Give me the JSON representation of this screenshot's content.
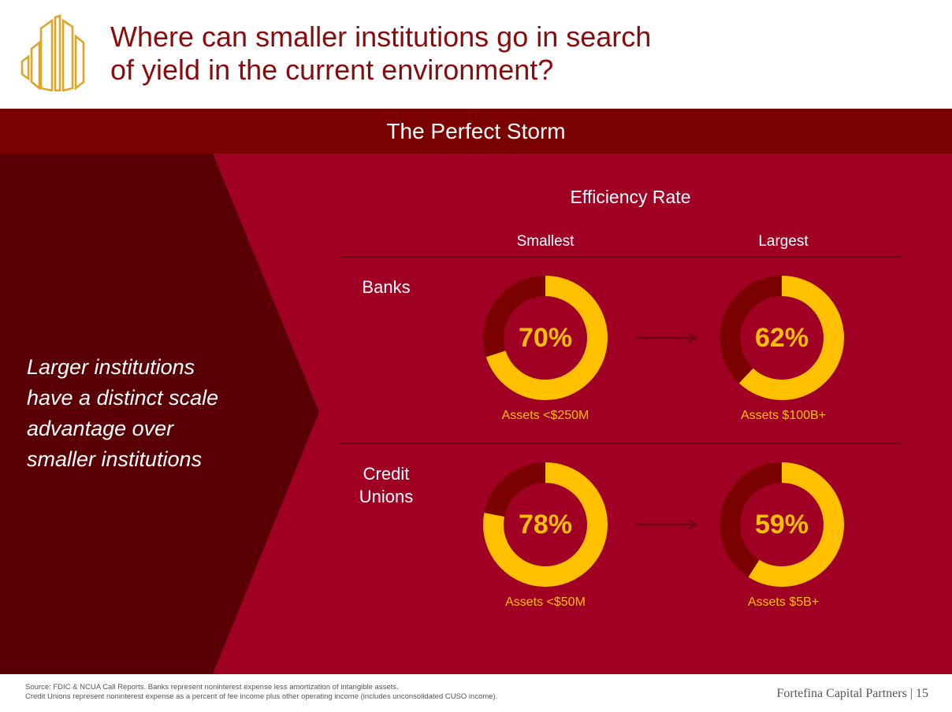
{
  "header": {
    "title_line1": "Where can smaller institutions go in search",
    "title_line2": "of yield in the current environment?"
  },
  "banner": {
    "label": "The Perfect Storm"
  },
  "left_panel": {
    "lines": [
      "Larger institutions",
      "have a distinct scale",
      "advantage over",
      "smaller institutions"
    ]
  },
  "efficiency": {
    "title": "Efficiency Rate",
    "col_smallest": "Smallest",
    "col_largest": "Largest",
    "rows": [
      {
        "label_lines": [
          "Banks"
        ],
        "smallest": {
          "value": 70,
          "label": "70%",
          "caption": "Assets <$250M"
        },
        "largest": {
          "value": 62,
          "label": "62%",
          "caption": "Assets $100B+"
        }
      },
      {
        "label_lines": [
          "Credit",
          "Unions"
        ],
        "smallest": {
          "value": 78,
          "label": "78%",
          "caption": "Assets <$50M"
        },
        "largest": {
          "value": 59,
          "label": "59%",
          "caption": "Assets $5B+"
        }
      }
    ]
  },
  "colors": {
    "brand_red": "#a10025",
    "dark_red": "#7b0000",
    "chevron": "#5a0005",
    "accent_yellow": "#ffc000",
    "title_red": "#8a0b0b"
  },
  "footer": {
    "source_line1": "Source: FDIC & NCUA Call Reports.  Banks represent noninterest expense less amortization of intangible assets.",
    "source_line2": "Credit Unions represent noninterest expense as a percent of fee income plus other operating income (includes unconsolidated CUSO income).",
    "brand": "Fortefina Capital Partners  |  15"
  }
}
